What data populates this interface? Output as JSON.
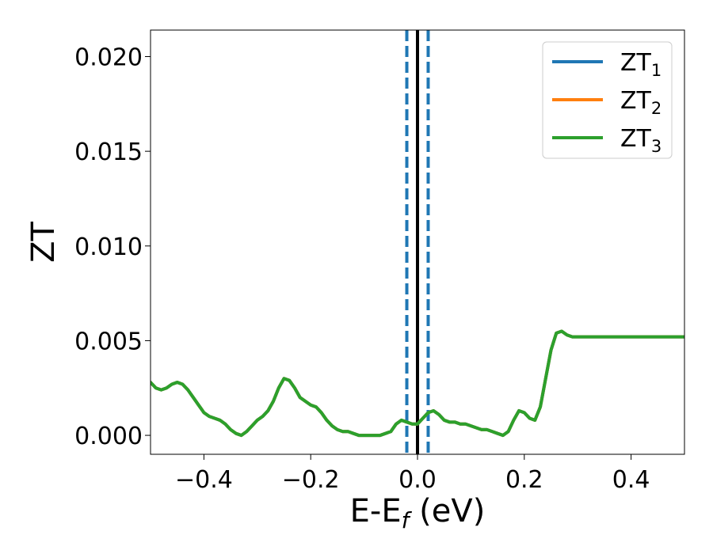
{
  "chart_data": {
    "type": "line",
    "xlabel": "E-E",
    "xlabel_sub": "f",
    "xlabel_suffix": " (eV)",
    "ylabel": "ZT",
    "xlim": [
      -0.5,
      0.5
    ],
    "ylim": [
      -0.001,
      0.0214
    ],
    "x_ticks": [
      -0.4,
      -0.2,
      0.0,
      0.2,
      0.4
    ],
    "x_tick_labels": [
      "−0.4",
      "−0.2",
      "0.0",
      "0.2",
      "0.4"
    ],
    "y_ticks": [
      0.0,
      0.005,
      0.01,
      0.015,
      0.02
    ],
    "y_tick_labels": [
      "0.000",
      "0.005",
      "0.010",
      "0.015",
      "0.020"
    ],
    "grid": false,
    "legend_position": "top-right",
    "vlines": [
      {
        "x": 0.0,
        "color": "#000000",
        "style": "solid"
      },
      {
        "x": -0.02,
        "color": "#1f77b4",
        "style": "dashed"
      },
      {
        "x": 0.02,
        "color": "#1f77b4",
        "style": "dashed"
      }
    ],
    "series": [
      {
        "name": "ZT",
        "sub": "1",
        "color": "#1f77b4",
        "visible_on_top": false
      },
      {
        "name": "ZT",
        "sub": "2",
        "color": "#ff7f0e",
        "visible_on_top": false
      },
      {
        "name": "ZT",
        "sub": "3",
        "color": "#2ca02c",
        "visible_on_top": true
      }
    ],
    "x": [
      -0.5,
      -0.49,
      -0.48,
      -0.47,
      -0.46,
      -0.45,
      -0.44,
      -0.43,
      -0.42,
      -0.41,
      -0.4,
      -0.39,
      -0.38,
      -0.37,
      -0.36,
      -0.35,
      -0.34,
      -0.33,
      -0.32,
      -0.31,
      -0.3,
      -0.29,
      -0.28,
      -0.27,
      -0.26,
      -0.25,
      -0.24,
      -0.23,
      -0.22,
      -0.21,
      -0.2,
      -0.19,
      -0.18,
      -0.17,
      -0.16,
      -0.15,
      -0.14,
      -0.13,
      -0.12,
      -0.11,
      -0.1,
      -0.09,
      -0.08,
      -0.07,
      -0.06,
      -0.05,
      -0.04,
      -0.03,
      -0.02,
      -0.01,
      0.0,
      0.01,
      0.02,
      0.03,
      0.04,
      0.05,
      0.06,
      0.07,
      0.08,
      0.09,
      0.1,
      0.11,
      0.12,
      0.13,
      0.14,
      0.15,
      0.16,
      0.17,
      0.18,
      0.19,
      0.2,
      0.21,
      0.22,
      0.23,
      0.24,
      0.25,
      0.26,
      0.27,
      0.28,
      0.29,
      0.3,
      0.31,
      0.32,
      0.33,
      0.34,
      0.35,
      0.36,
      0.37,
      0.38,
      0.39,
      0.4,
      0.41,
      0.42,
      0.43,
      0.44,
      0.45,
      0.46,
      0.47,
      0.48,
      0.49,
      0.5
    ],
    "y": [
      0.0028,
      0.0025,
      0.0024,
      0.0025,
      0.0027,
      0.0028,
      0.0027,
      0.0024,
      0.002,
      0.0016,
      0.0012,
      0.001,
      0.0009,
      0.0008,
      0.0006,
      0.0003,
      0.0001,
      0.0,
      0.0002,
      0.0005,
      0.0008,
      0.001,
      0.0013,
      0.0018,
      0.0025,
      0.003,
      0.0029,
      0.0025,
      0.002,
      0.0018,
      0.0016,
      0.0015,
      0.0012,
      0.0008,
      0.0005,
      0.0003,
      0.0002,
      0.0002,
      0.0001,
      0.0,
      0.0,
      0.0,
      0.0,
      0.0,
      0.0001,
      0.0002,
      0.0006,
      0.0008,
      0.0007,
      0.0006,
      0.0006,
      0.0009,
      0.0012,
      0.0013,
      0.0011,
      0.0008,
      0.0007,
      0.0007,
      0.0006,
      0.0006,
      0.0005,
      0.0004,
      0.0003,
      0.0003,
      0.0002,
      0.0001,
      0.0,
      0.0002,
      0.0008,
      0.0013,
      0.0012,
      0.0009,
      0.0008,
      0.0015,
      0.003,
      0.0045,
      0.0054,
      0.0055,
      0.0053,
      0.0052,
      0.0052,
      0.0052,
      0.0052,
      0.0052,
      0.0052,
      0.0052,
      0.0052,
      0.0052,
      0.0052,
      0.0052,
      0.0052,
      0.0052,
      0.0052,
      0.0052,
      0.0052,
      0.0052,
      0.0052,
      0.0052,
      0.0052,
      0.0052,
      0.0052
    ]
  }
}
